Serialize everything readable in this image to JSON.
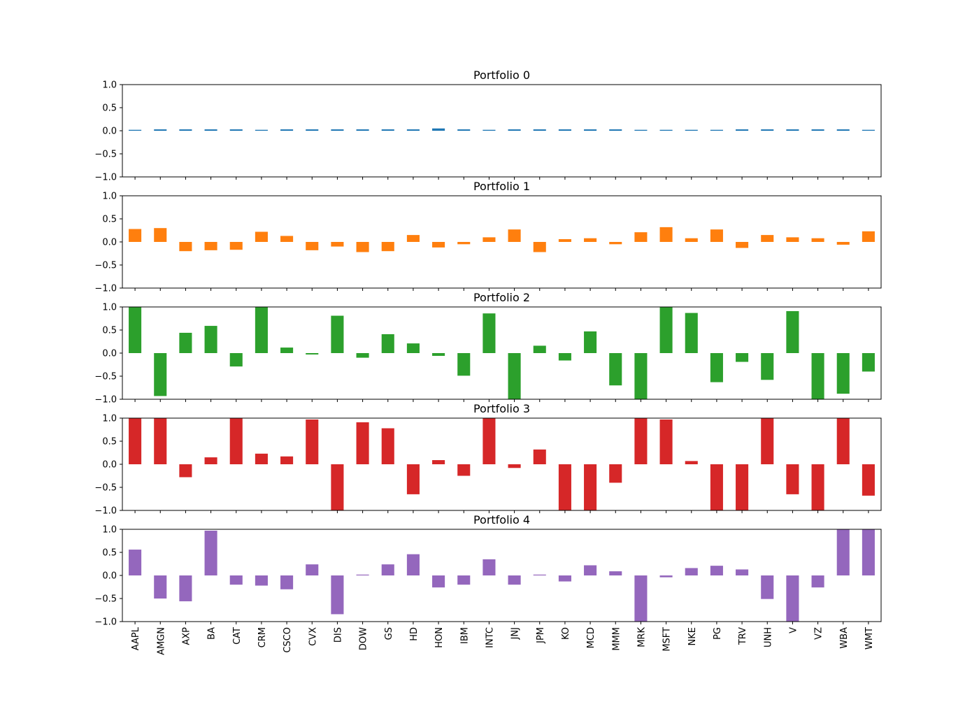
{
  "chart_data": {
    "type": "bar",
    "ylim": [
      -1.0,
      1.0
    ],
    "yticks": [
      "1.0",
      "0.5",
      "0.0",
      "−0.5",
      "−1.0"
    ],
    "ytick_values": [
      1.0,
      0.5,
      0.0,
      -0.5,
      -1.0
    ],
    "grid": false,
    "categories": [
      "AAPL",
      "AMGN",
      "AXP",
      "BA",
      "CAT",
      "CRM",
      "CSCO",
      "CVX",
      "DIS",
      "DOW",
      "GS",
      "HD",
      "HON",
      "IBM",
      "INTC",
      "JNJ",
      "JPM",
      "KO",
      "MCD",
      "MMM",
      "MRK",
      "MSFT",
      "NKE",
      "PG",
      "TRV",
      "UNH",
      "V",
      "VZ",
      "WBA",
      "WMT"
    ],
    "panels": [
      {
        "title": "Portfolio 0",
        "color": "#1f77b4",
        "values": [
          0.02,
          0.03,
          0.03,
          0.03,
          0.03,
          0.02,
          0.03,
          0.03,
          0.03,
          0.03,
          0.03,
          0.03,
          0.05,
          0.03,
          0.02,
          0.03,
          0.03,
          0.03,
          0.03,
          0.03,
          0.02,
          0.02,
          0.02,
          0.02,
          0.03,
          0.03,
          0.03,
          0.03,
          0.03,
          0.02
        ]
      },
      {
        "title": "Portfolio 1",
        "color": "#ff7f0e",
        "values": [
          0.28,
          0.3,
          -0.2,
          -0.18,
          -0.17,
          0.22,
          0.13,
          -0.18,
          -0.1,
          -0.22,
          -0.2,
          0.15,
          -0.12,
          -0.05,
          0.1,
          0.27,
          -0.22,
          0.06,
          0.08,
          -0.05,
          0.21,
          0.32,
          0.08,
          0.27,
          -0.13,
          0.15,
          0.1,
          0.08,
          -0.06,
          0.23
        ]
      },
      {
        "title": "Portfolio 2",
        "color": "#2ca02c",
        "values": [
          1.0,
          -0.93,
          0.44,
          0.59,
          -0.29,
          1.0,
          0.12,
          -0.03,
          0.81,
          -0.1,
          0.41,
          0.21,
          -0.06,
          -0.49,
          0.86,
          -1.0,
          0.16,
          -0.16,
          0.47,
          -0.7,
          -1.0,
          1.0,
          0.87,
          -0.63,
          -0.19,
          -0.58,
          0.91,
          -1.0,
          -0.88,
          -0.4
        ]
      },
      {
        "title": "Portfolio 3",
        "color": "#d62728",
        "values": [
          1.0,
          1.0,
          -0.28,
          0.15,
          1.0,
          0.23,
          0.17,
          0.97,
          -1.0,
          0.91,
          0.78,
          -0.65,
          0.09,
          -0.25,
          1.0,
          -0.08,
          0.32,
          -1.0,
          -1.0,
          -0.4,
          1.0,
          0.97,
          0.07,
          -1.0,
          -1.0,
          1.0,
          -0.65,
          -1.0,
          1.0,
          -0.68
        ]
      },
      {
        "title": "Portfolio 4",
        "color": "#9467bd",
        "values": [
          0.56,
          -0.5,
          -0.56,
          0.97,
          -0.2,
          -0.22,
          -0.3,
          0.24,
          -0.84,
          -0.01,
          0.24,
          0.46,
          -0.26,
          -0.2,
          0.35,
          -0.2,
          0.0,
          -0.13,
          0.22,
          0.09,
          -1.0,
          -0.04,
          0.16,
          0.21,
          0.13,
          -0.51,
          -1.0,
          -0.26,
          1.0,
          1.0
        ]
      }
    ]
  }
}
